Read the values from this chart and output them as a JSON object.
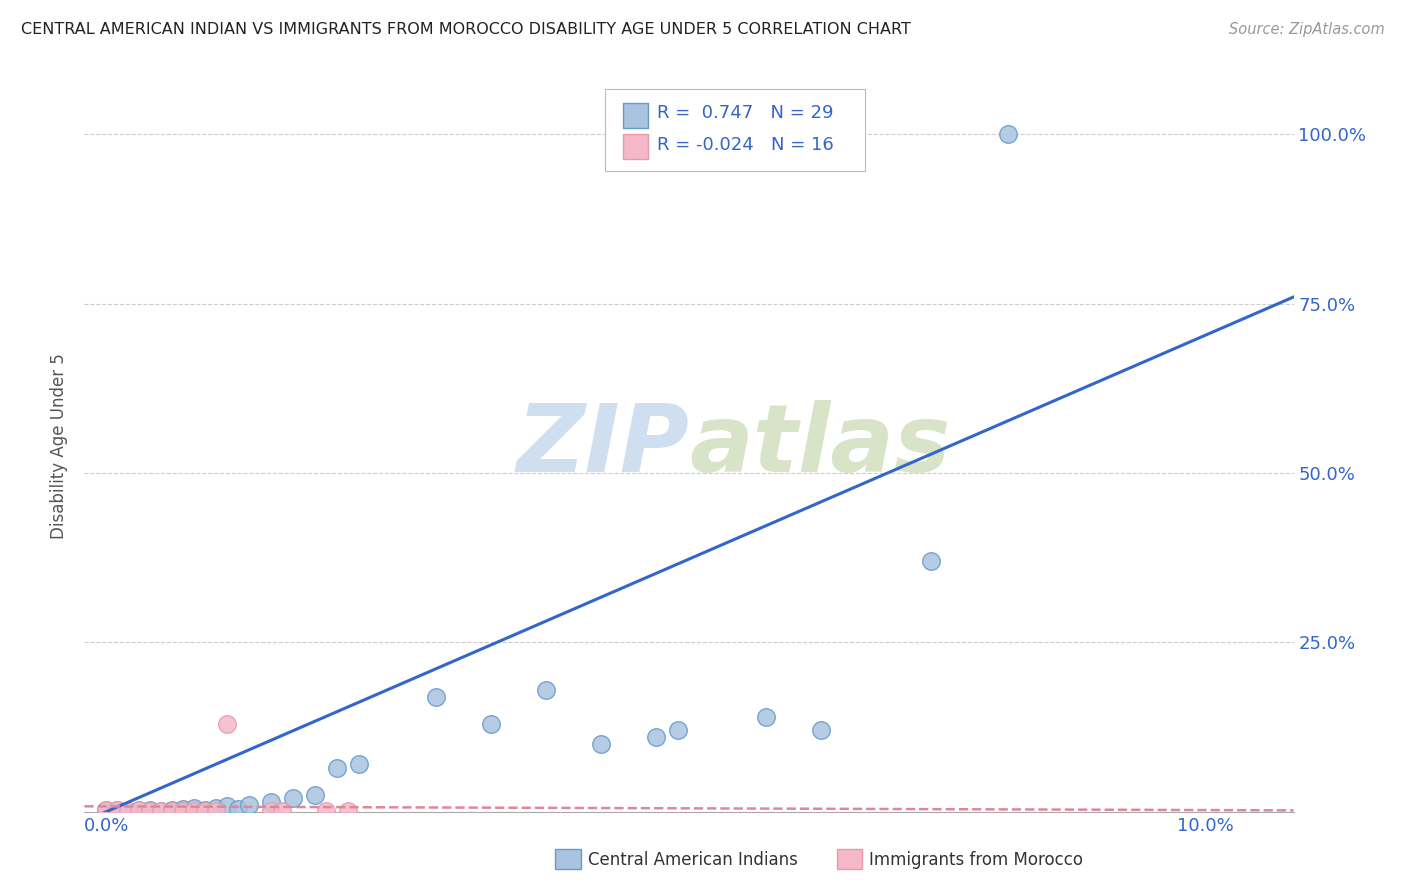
{
  "title": "CENTRAL AMERICAN INDIAN VS IMMIGRANTS FROM MOROCCO DISABILITY AGE UNDER 5 CORRELATION CHART",
  "source": "Source: ZipAtlas.com",
  "ylabel": "Disability Age Under 5",
  "ylim": [
    0,
    1.08
  ],
  "xlim": [
    -0.002,
    0.108
  ],
  "yticks": [
    0.0,
    0.25,
    0.5,
    0.75,
    1.0
  ],
  "ytick_labels": [
    "",
    "25.0%",
    "50.0%",
    "75.0%",
    "100.0%"
  ],
  "blue_R": "0.747",
  "blue_N": "29",
  "pink_R": "-0.024",
  "pink_N": "16",
  "blue_color": "#aac4e0",
  "pink_color": "#f4b8c8",
  "blue_edge_color": "#6699cc",
  "pink_edge_color": "#e899aa",
  "blue_line_color": "#3366cc",
  "pink_line_color": "#dd8899",
  "text_color": "#3366cc",
  "watermark_color": "#d0dff0",
  "legend1_label": "Central American Indians",
  "legend2_label": "Immigrants from Morocco",
  "blue_scatter_x": [
    0.0,
    0.001,
    0.002,
    0.003,
    0.004,
    0.005,
    0.006,
    0.007,
    0.008,
    0.009,
    0.01,
    0.011,
    0.012,
    0.013,
    0.015,
    0.017,
    0.019,
    0.021,
    0.023,
    0.03,
    0.035,
    0.04,
    0.045,
    0.05,
    0.052,
    0.06,
    0.065,
    0.075,
    0.082
  ],
  "blue_scatter_y": [
    0.003,
    0.002,
    0.001,
    0.003,
    0.002,
    0.001,
    0.003,
    0.004,
    0.005,
    0.003,
    0.006,
    0.008,
    0.004,
    0.01,
    0.015,
    0.02,
    0.025,
    0.065,
    0.07,
    0.17,
    0.13,
    0.18,
    0.1,
    0.11,
    0.12,
    0.14,
    0.12,
    0.37,
    1.0
  ],
  "pink_scatter_x": [
    0.0,
    0.001,
    0.002,
    0.003,
    0.004,
    0.005,
    0.006,
    0.007,
    0.008,
    0.009,
    0.01,
    0.011,
    0.015,
    0.016,
    0.02,
    0.022
  ],
  "pink_scatter_y": [
    0.003,
    0.002,
    0.001,
    0.002,
    0.001,
    0.001,
    0.001,
    0.001,
    0.001,
    0.001,
    0.001,
    0.13,
    0.001,
    0.001,
    0.001,
    0.001
  ],
  "blue_trend_x": [
    -0.002,
    0.108
  ],
  "blue_trend_y": [
    -0.014,
    0.76
  ],
  "pink_trend_x": [
    -0.002,
    0.108
  ],
  "pink_trend_y": [
    0.008,
    0.002
  ]
}
